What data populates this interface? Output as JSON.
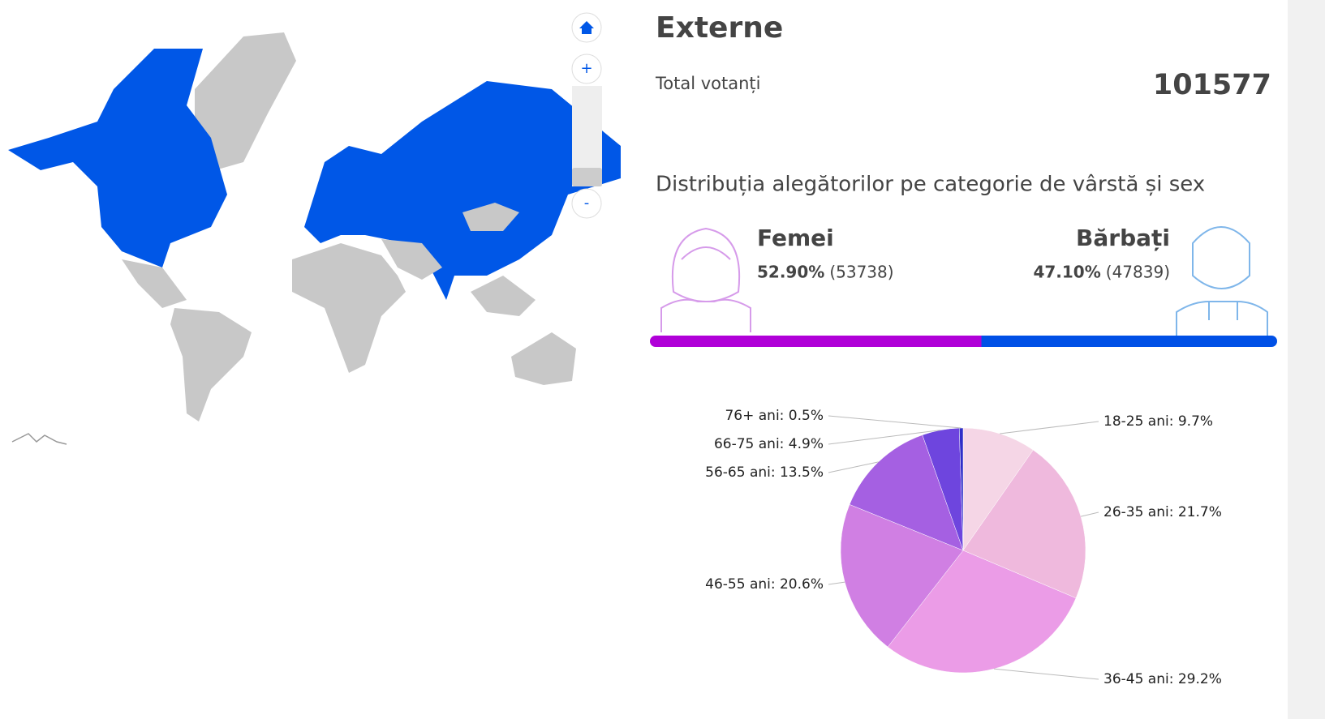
{
  "header": {
    "title": "Externe"
  },
  "total": {
    "label": "Total votanți",
    "value": 101577
  },
  "distribution_title": "Distribuția alegătorilor pe categorie de vârstă și sex",
  "gender": [
    {
      "name": "Femei",
      "color": "#b000d8",
      "percent": {
        "value": 52.9,
        "label": "52.90%"
      },
      "count": {
        "value": 53738,
        "label": "(53738)"
      }
    },
    {
      "name": "Bărbați",
      "color": "#0050e6",
      "percent": {
        "value": 47.1,
        "label": "47.10%"
      },
      "count": {
        "value": 47839,
        "label": "(47839)"
      }
    }
  ],
  "map_controls": {
    "zoom_in": "+",
    "zoom_out": "-"
  },
  "chart_data": {
    "type": "pie",
    "categories": [
      "18-25 ani: 9.7%",
      "26-35 ani: 21.7%",
      "36-45 ani: 29.2%",
      "46-55 ani: 20.6%",
      "56-65 ani: 13.5%",
      "66-75 ani: 4.9%",
      "76+ ani: 0.5%"
    ],
    "values": [
      9.7,
      21.7,
      29.2,
      20.6,
      13.5,
      4.9,
      0.5
    ],
    "colors": [
      "#f5d6e6",
      "#efb9dd",
      "#eb9ce7",
      "#d07fe3",
      "#a560e2",
      "#6e45de",
      "#2f2fc8"
    ]
  }
}
